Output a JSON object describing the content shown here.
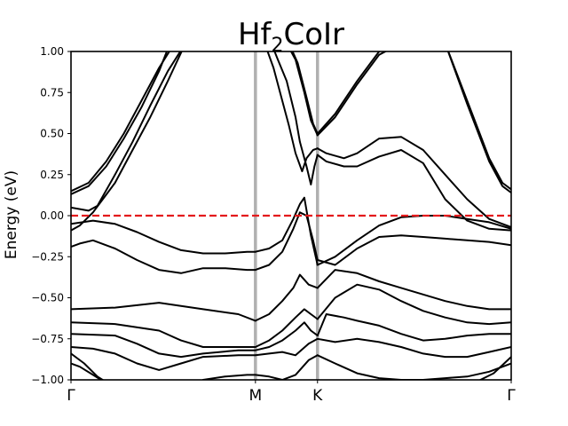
{
  "chart_data": {
    "type": "line",
    "title": "Hf₂CoIr",
    "title_main": "Hf",
    "title_sub": "2",
    "title_tail": "CoIr",
    "ylabel": "Energy (eV)",
    "ylim": [
      -1.0,
      1.0
    ],
    "xlim": [
      0,
      1
    ],
    "yticks": [
      -1.0,
      -0.75,
      -0.5,
      -0.25,
      0.0,
      0.25,
      0.5,
      0.75,
      1.0
    ],
    "ytick_labels": [
      "−1.00",
      "−0.75",
      "−0.50",
      "−0.25",
      "0.00",
      "0.25",
      "0.50",
      "0.75",
      "1.00"
    ],
    "high_symmetry_points": [
      {
        "label": "Γ",
        "x": 0.0
      },
      {
        "label": "M",
        "x": 0.419
      },
      {
        "label": "K",
        "x": 0.56
      },
      {
        "label": "Γ",
        "x": 1.0
      }
    ],
    "fermi_level": 0.0,
    "colors": {
      "bands": "#000000",
      "fermi": "#e41a1c",
      "kpath_lines": "#b0b0b0"
    },
    "series": [
      {
        "x": [
          0,
          0.04,
          0.08,
          0.12,
          0.16,
          0.2,
          0.235
        ],
        "y": [
          0.15,
          0.2,
          0.33,
          0.5,
          0.7,
          0.9,
          1.05
        ]
      },
      {
        "x": [
          0,
          0.04,
          0.08,
          0.12,
          0.16,
          0.2,
          0.225
        ],
        "y": [
          0.13,
          0.18,
          0.3,
          0.47,
          0.66,
          0.88,
          1.05
        ]
      },
      {
        "x": [
          0,
          0.04,
          0.06,
          0.1,
          0.14,
          0.18,
          0.22,
          0.26
        ],
        "y": [
          0.05,
          0.03,
          0.06,
          0.25,
          0.45,
          0.67,
          0.88,
          1.05
        ]
      },
      {
        "x": [
          0,
          0.02,
          0.05,
          0.1,
          0.14,
          0.18,
          0.22,
          0.26
        ],
        "y": [
          -0.09,
          -0.06,
          0.02,
          0.2,
          0.4,
          0.6,
          0.82,
          1.05
        ]
      },
      {
        "x": [
          0,
          0.05,
          0.1,
          0.15,
          0.2,
          0.25,
          0.3,
          0.35,
          0.4,
          0.419
        ],
        "y": [
          -0.05,
          -0.03,
          -0.05,
          -0.1,
          -0.16,
          -0.21,
          -0.23,
          -0.23,
          -0.22,
          -0.22
        ]
      },
      {
        "x": [
          0,
          0.02,
          0.05,
          0.1,
          0.15,
          0.2,
          0.25,
          0.3,
          0.35,
          0.4,
          0.419
        ],
        "y": [
          -0.19,
          -0.17,
          -0.15,
          -0.2,
          -0.27,
          -0.33,
          -0.35,
          -0.32,
          -0.32,
          -0.33,
          -0.33
        ]
      },
      {
        "x": [
          0,
          0.1,
          0.2,
          0.3,
          0.38,
          0.419
        ],
        "y": [
          -0.57,
          -0.56,
          -0.53,
          -0.57,
          -0.6,
          -0.64
        ]
      },
      {
        "x": [
          0,
          0.1,
          0.2,
          0.25,
          0.3,
          0.38,
          0.419
        ],
        "y": [
          -0.65,
          -0.66,
          -0.7,
          -0.76,
          -0.8,
          -0.8,
          -0.8
        ]
      },
      {
        "x": [
          0,
          0.1,
          0.15,
          0.2,
          0.25,
          0.3,
          0.38,
          0.419
        ],
        "y": [
          -0.72,
          -0.73,
          -0.78,
          -0.84,
          -0.86,
          -0.84,
          -0.82,
          -0.82
        ]
      },
      {
        "x": [
          0,
          0.05,
          0.1,
          0.15,
          0.2,
          0.25,
          0.3,
          0.38,
          0.419
        ],
        "y": [
          -0.8,
          -0.81,
          -0.84,
          -0.9,
          -0.94,
          -0.9,
          -0.86,
          -0.85,
          -0.85
        ]
      },
      {
        "x": [
          0,
          0.03,
          0.06,
          0.09
        ],
        "y": [
          -0.84,
          -0.9,
          -0.98,
          -1.03
        ]
      },
      {
        "x": [
          0,
          0.02,
          0.05,
          0.08,
          0.1
        ],
        "y": [
          -0.9,
          -0.92,
          -0.97,
          -1.02,
          -1.05
        ]
      },
      {
        "x": [
          0.3,
          0.35,
          0.4,
          0.419
        ],
        "y": [
          -1.0,
          -0.98,
          -0.97,
          -0.97
        ]
      },
      {
        "x": [
          0.455,
          0.47,
          0.49,
          0.51,
          0.52,
          0.535,
          0.545,
          0.553,
          0.56
        ],
        "y": [
          1.05,
          0.95,
          0.82,
          0.6,
          0.45,
          0.3,
          0.19,
          0.3,
          0.37
        ]
      },
      {
        "x": [
          0.44,
          0.46,
          0.475,
          0.495,
          0.51,
          0.525,
          0.535,
          0.55,
          0.56
        ],
        "y": [
          1.05,
          0.9,
          0.75,
          0.55,
          0.38,
          0.27,
          0.35,
          0.4,
          0.41
        ]
      },
      {
        "x": [
          0.49,
          0.51,
          0.53,
          0.545,
          0.56
        ],
        "y": [
          1.05,
          0.95,
          0.75,
          0.58,
          0.49
        ]
      },
      {
        "x": [
          0.495,
          0.515,
          0.535,
          0.55,
          0.56
        ],
        "y": [
          1.05,
          0.93,
          0.72,
          0.56,
          0.5
        ]
      },
      {
        "x": [
          0.419,
          0.45,
          0.48,
          0.505,
          0.52,
          0.53,
          0.545,
          0.56
        ],
        "y": [
          -0.22,
          -0.2,
          -0.15,
          -0.02,
          0.07,
          0.11,
          -0.12,
          -0.3
        ]
      },
      {
        "x": [
          0.419,
          0.45,
          0.48,
          0.505,
          0.52,
          0.535,
          0.55,
          0.56
        ],
        "y": [
          -0.33,
          -0.3,
          -0.22,
          -0.08,
          0.02,
          0.0,
          -0.15,
          -0.27
        ]
      },
      {
        "x": [
          0.419,
          0.45,
          0.48,
          0.505,
          0.52,
          0.54,
          0.56
        ],
        "y": [
          -0.64,
          -0.6,
          -0.52,
          -0.44,
          -0.36,
          -0.42,
          -0.44
        ]
      },
      {
        "x": [
          0.419,
          0.45,
          0.48,
          0.51,
          0.53,
          0.545,
          0.56
        ],
        "y": [
          -0.8,
          -0.76,
          -0.7,
          -0.62,
          -0.57,
          -0.6,
          -0.63
        ]
      },
      {
        "x": [
          0.419,
          0.45,
          0.48,
          0.51,
          0.53,
          0.545,
          0.56
        ],
        "y": [
          -0.82,
          -0.8,
          -0.76,
          -0.7,
          -0.65,
          -0.7,
          -0.73
        ]
      },
      {
        "x": [
          0.419,
          0.45,
          0.48,
          0.51,
          0.54,
          0.56
        ],
        "y": [
          -0.85,
          -0.84,
          -0.83,
          -0.85,
          -0.78,
          -0.75
        ]
      },
      {
        "x": [
          0.419,
          0.45,
          0.48,
          0.51,
          0.54,
          0.56
        ],
        "y": [
          -0.97,
          -0.98,
          -1.0,
          -0.97,
          -0.88,
          -0.85
        ]
      },
      {
        "x": [
          0.56,
          0.6,
          0.65,
          0.7,
          0.75,
          0.8,
          0.85,
          0.9,
          0.95,
          0.98,
          1.0
        ],
        "y": [
          0.5,
          0.62,
          0.82,
          1.0,
          1.05,
          1.05,
          1.05,
          0.7,
          0.35,
          0.2,
          0.16
        ]
      },
      {
        "x": [
          0.56,
          0.6,
          0.65,
          0.7,
          0.75,
          0.8,
          0.85,
          0.9,
          0.95,
          0.98,
          1.0
        ],
        "y": [
          0.49,
          0.6,
          0.8,
          0.98,
          1.05,
          1.05,
          1.05,
          0.68,
          0.33,
          0.18,
          0.14
        ]
      },
      {
        "x": [
          0.56,
          0.58,
          0.62,
          0.65,
          0.7,
          0.75,
          0.8,
          0.85,
          0.9,
          0.95,
          1.0
        ],
        "y": [
          0.41,
          0.38,
          0.35,
          0.38,
          0.47,
          0.48,
          0.4,
          0.25,
          0.1,
          -0.02,
          -0.07
        ]
      },
      {
        "x": [
          0.56,
          0.58,
          0.62,
          0.65,
          0.7,
          0.75,
          0.8,
          0.85,
          0.9,
          0.95,
          1.0
        ],
        "y": [
          0.37,
          0.33,
          0.3,
          0.3,
          0.36,
          0.4,
          0.32,
          0.1,
          -0.03,
          -0.08,
          -0.09
        ]
      },
      {
        "x": [
          0.56,
          0.6,
          0.65,
          0.7,
          0.75,
          0.8,
          0.85,
          0.9,
          0.95,
          1.0
        ],
        "y": [
          -0.3,
          -0.25,
          -0.15,
          -0.06,
          -0.01,
          0.0,
          0.0,
          -0.02,
          -0.04,
          -0.08
        ]
      },
      {
        "x": [
          0.56,
          0.6,
          0.65,
          0.7,
          0.75,
          0.8,
          0.85,
          0.9,
          0.95,
          1.0
        ],
        "y": [
          -0.27,
          -0.3,
          -0.2,
          -0.13,
          -0.12,
          -0.13,
          -0.14,
          -0.15,
          -0.16,
          -0.18
        ]
      },
      {
        "x": [
          0.56,
          0.6,
          0.65,
          0.7,
          0.75,
          0.8,
          0.85,
          0.9,
          0.95,
          1.0
        ],
        "y": [
          -0.44,
          -0.33,
          -0.35,
          -0.4,
          -0.44,
          -0.48,
          -0.52,
          -0.55,
          -0.57,
          -0.57
        ]
      },
      {
        "x": [
          0.56,
          0.6,
          0.65,
          0.7,
          0.75,
          0.8,
          0.85,
          0.9,
          0.95,
          1.0
        ],
        "y": [
          -0.63,
          -0.5,
          -0.42,
          -0.45,
          -0.52,
          -0.58,
          -0.62,
          -0.65,
          -0.66,
          -0.65
        ]
      },
      {
        "x": [
          0.56,
          0.58,
          0.62,
          0.65,
          0.7,
          0.75,
          0.8,
          0.85,
          0.9,
          0.95,
          1.0
        ],
        "y": [
          -0.73,
          -0.6,
          -0.62,
          -0.64,
          -0.67,
          -0.72,
          -0.76,
          -0.75,
          -0.73,
          -0.72,
          -0.72
        ]
      },
      {
        "x": [
          0.56,
          0.6,
          0.65,
          0.7,
          0.75,
          0.8,
          0.85,
          0.9,
          0.95,
          1.0
        ],
        "y": [
          -0.75,
          -0.77,
          -0.75,
          -0.77,
          -0.8,
          -0.84,
          -0.86,
          -0.86,
          -0.83,
          -0.8
        ]
      },
      {
        "x": [
          0.56,
          0.6,
          0.65,
          0.7,
          0.75,
          0.8,
          0.85,
          0.9,
          0.95,
          1.0
        ],
        "y": [
          -0.85,
          -0.9,
          -0.96,
          -0.99,
          -1.0,
          -1.0,
          -0.99,
          -0.98,
          -0.95,
          -0.9
        ]
      },
      {
        "x": [
          0.9,
          0.93,
          0.96,
          0.98,
          1.0
        ],
        "y": [
          -1.03,
          -1.0,
          -0.96,
          -0.91,
          -0.86
        ]
      }
    ]
  }
}
